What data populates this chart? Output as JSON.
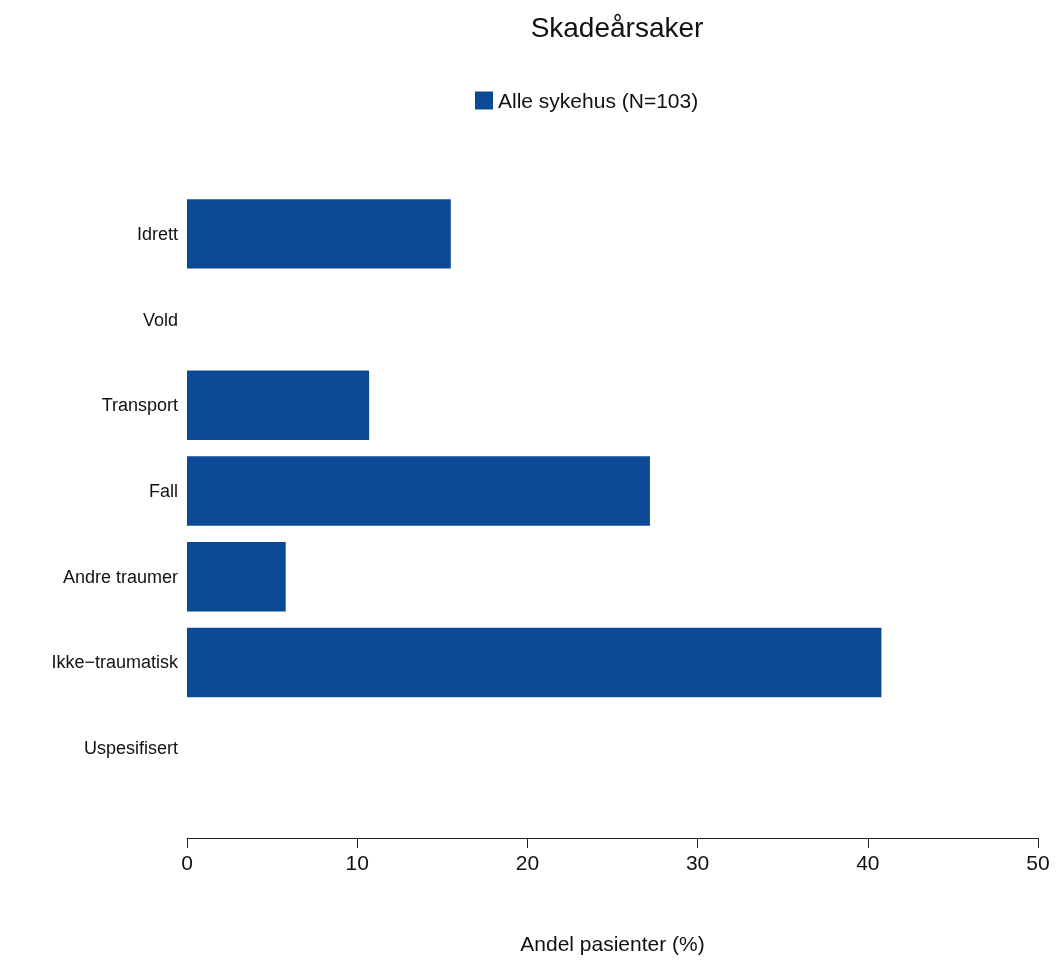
{
  "chart_data": {
    "type": "bar",
    "orientation": "horizontal",
    "title": "Skadeårsaker",
    "xlabel": "Andel pasienter (%)",
    "categories": [
      "Idrett",
      "Vold",
      "Transport",
      "Fall",
      "Andre traumer",
      "Ikke−traumatisk",
      "Uspesifisert"
    ],
    "series": [
      {
        "name": "Alle sykehus (N=103)",
        "color": "#0d4a96",
        "values": [
          15.5,
          0,
          10.7,
          27.2,
          5.8,
          40.8,
          0
        ]
      }
    ],
    "xlim": [
      0,
      50
    ],
    "xticks": [
      0,
      10,
      20,
      30,
      40,
      50
    ],
    "grid": false,
    "legend": "top"
  }
}
